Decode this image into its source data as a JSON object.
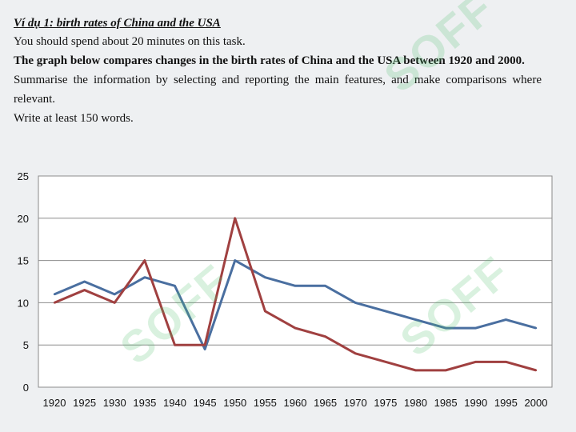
{
  "task": {
    "heading": "Ví dụ 1: birth rates of China and the USA",
    "time_note": "You should spend about 20 minutes on this task.",
    "prompt": "The graph below compares changes in the birth rates of China and the USA between 1920 and 2000.",
    "instruction": "Summarise the information by selecting and reporting the main features, and make comparisons where relevant.",
    "word_limit": "Write at least 150 words."
  },
  "watermark": {
    "text": "SOFF",
    "color": "#5cc27a"
  },
  "chart_data": {
    "type": "line",
    "title": "",
    "xlabel": "",
    "ylabel": "",
    "x": [
      1920,
      1925,
      1930,
      1935,
      1940,
      1945,
      1950,
      1955,
      1960,
      1965,
      1970,
      1975,
      1980,
      1985,
      1990,
      1995,
      2000
    ],
    "ylim": [
      0,
      25
    ],
    "yticks": [
      0,
      5,
      10,
      15,
      20,
      25
    ],
    "grid": true,
    "legend": "none",
    "series": [
      {
        "color": "#4a6fa0",
        "values": [
          11,
          12.5,
          11,
          13,
          12,
          4.5,
          15,
          13,
          12,
          12,
          10,
          9,
          8,
          7,
          7,
          8,
          7
        ]
      },
      {
        "color": "#a04040",
        "values": [
          10,
          11.5,
          10,
          15,
          5,
          5,
          20,
          9,
          7,
          6,
          4,
          3,
          2,
          2,
          3,
          3,
          2
        ]
      }
    ]
  }
}
